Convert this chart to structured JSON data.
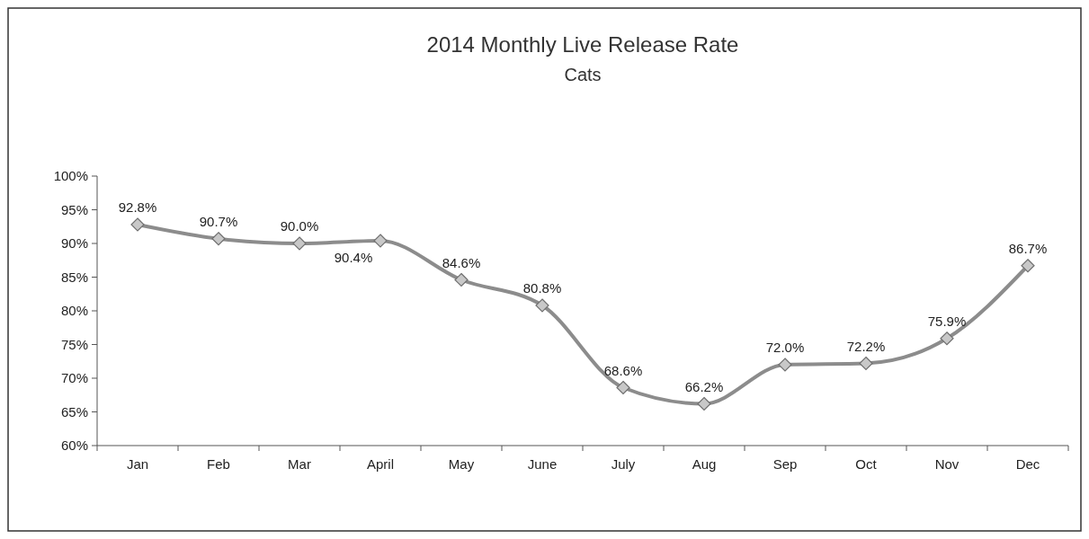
{
  "chart_data": {
    "type": "line",
    "title": "2014 Monthly Live Release Rate",
    "subtitle": "Cats",
    "categories": [
      "Jan",
      "Feb",
      "Mar",
      "April",
      "May",
      "June",
      "July",
      "Aug",
      "Sep",
      "Oct",
      "Nov",
      "Dec"
    ],
    "series": [
      {
        "color": "#8c8c8c",
        "values": [
          92.8,
          90.7,
          90.0,
          90.4,
          84.6,
          80.8,
          68.6,
          66.2,
          72.0,
          72.2,
          75.9,
          86.7
        ],
        "value_labels": [
          "92.8%",
          "90.7%",
          "90.0%",
          "90.4%",
          "84.6%",
          "80.8%",
          "68.6%",
          "66.2%",
          "72.0%",
          "72.2%",
          "75.9%",
          "86.7%"
        ]
      }
    ],
    "ylim": [
      60,
      100
    ],
    "yticks": [
      {
        "value": 60,
        "label": "60%"
      },
      {
        "value": 65,
        "label": "65%"
      },
      {
        "value": 70,
        "label": "70%"
      },
      {
        "value": 75,
        "label": "75%"
      },
      {
        "value": 80,
        "label": "80%"
      },
      {
        "value": 85,
        "label": "85%"
      },
      {
        "value": 90,
        "label": "90%"
      },
      {
        "value": 95,
        "label": "95%"
      },
      {
        "value": 100,
        "label": "100%"
      }
    ],
    "grid": false,
    "marker": "diamond",
    "line_style": "solid"
  }
}
